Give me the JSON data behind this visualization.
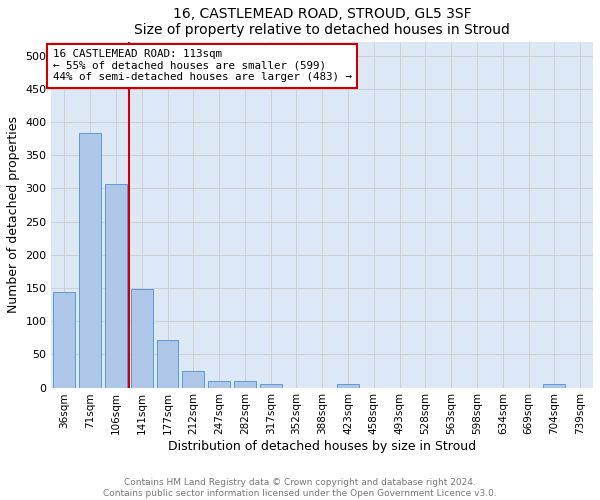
{
  "title1": "16, CASTLEMEAD ROAD, STROUD, GL5 3SF",
  "title2": "Size of property relative to detached houses in Stroud",
  "xlabel": "Distribution of detached houses by size in Stroud",
  "ylabel": "Number of detached properties",
  "bar_labels": [
    "36sqm",
    "71sqm",
    "106sqm",
    "141sqm",
    "177sqm",
    "212sqm",
    "247sqm",
    "282sqm",
    "317sqm",
    "352sqm",
    "388sqm",
    "423sqm",
    "458sqm",
    "493sqm",
    "528sqm",
    "563sqm",
    "598sqm",
    "634sqm",
    "669sqm",
    "704sqm",
    "739sqm"
  ],
  "bar_values": [
    144,
    383,
    307,
    149,
    72,
    25,
    10,
    10,
    5,
    0,
    0,
    5,
    0,
    0,
    0,
    0,
    0,
    0,
    0,
    5,
    0
  ],
  "bar_color": "#aec6e8",
  "bar_edgecolor": "#5b9bd5",
  "property_line_x": 2.5,
  "annotation_line1": "16 CASTLEMEAD ROAD: 113sqm",
  "annotation_line2": "← 55% of detached houses are smaller (599)",
  "annotation_line3": "44% of semi-detached houses are larger (483) →",
  "red_line_color": "#cc0000",
  "ylim": [
    0,
    520
  ],
  "yticks": [
    0,
    50,
    100,
    150,
    200,
    250,
    300,
    350,
    400,
    450,
    500
  ],
  "grid_color": "#cccccc",
  "footer1": "Contains HM Land Registry data © Crown copyright and database right 2024.",
  "footer2": "Contains public sector information licensed under the Open Government Licence v3.0.",
  "bg_color": "#dce8f5"
}
